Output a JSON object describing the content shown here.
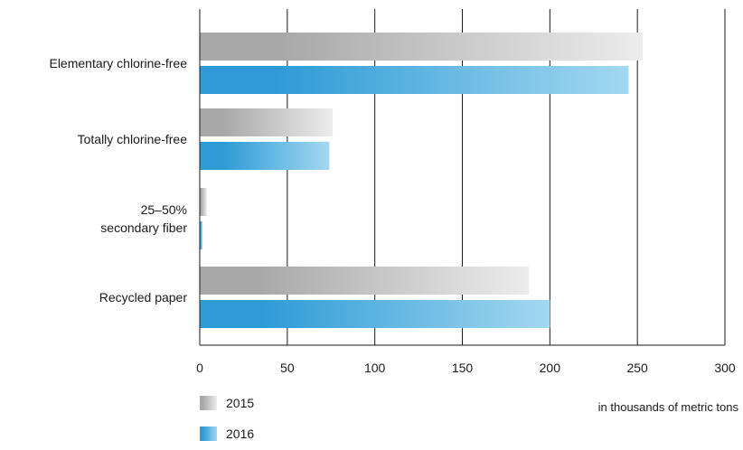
{
  "chart_data": {
    "type": "bar",
    "orientation": "horizontal",
    "categories": [
      "Elementary chlorine-free",
      "Totally chlorine-free",
      "25–50% secondary fiber",
      "Recycled paper"
    ],
    "category_label_lines": [
      [
        "Elementary chlorine-free"
      ],
      [
        "Totally chlorine-free"
      ],
      [
        "25–50%",
        "secondary fiber"
      ],
      [
        "Recycled paper"
      ]
    ],
    "series": [
      {
        "name": "2015",
        "values": [
          253,
          76,
          4,
          188
        ],
        "color_start": "#a8a8a8",
        "color_end": "#ececec"
      },
      {
        "name": "2016",
        "values": [
          245,
          74,
          1.5,
          200
        ],
        "color_start": "#2e9bd6",
        "color_end": "#a3d8f0"
      }
    ],
    "xlim": [
      0,
      300
    ],
    "xticks": [
      0,
      50,
      100,
      150,
      200,
      250,
      300
    ],
    "xlabel": "in thousands of metric tons",
    "ylabel": "",
    "title": "",
    "grid": "vertical",
    "legend_position": "bottom-left"
  }
}
